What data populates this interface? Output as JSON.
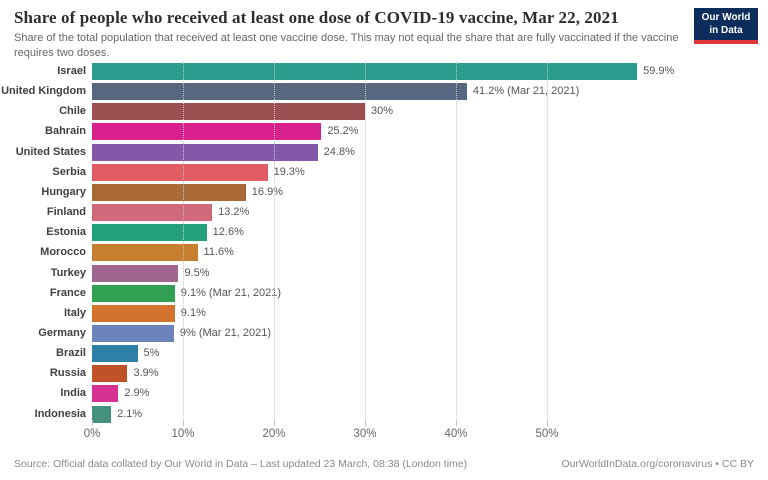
{
  "header": {
    "title": "Share of people who received at least one dose of COVID-19 vaccine, Mar 22, 2021",
    "subtitle": "Share of the total population that received at least one vaccine dose. This may not equal the share that are fully vaccinated if the vaccine requires two doses.",
    "logo": {
      "line1": "Our World",
      "line2": "in Data",
      "bg_color": "#0d2e5c",
      "accent_color": "#e0373b"
    }
  },
  "chart_data": {
    "type": "bar",
    "orientation": "horizontal",
    "title": "Share of people who received at least one dose of COVID-19 vaccine, Mar 22, 2021",
    "xlabel": "",
    "ylabel": "",
    "xlim": [
      0,
      61.5
    ],
    "grid": "dotted-vertical-on",
    "legend": "none",
    "x_ticks": [
      {
        "value": 0,
        "label": "0%"
      },
      {
        "value": 10,
        "label": "10%"
      },
      {
        "value": 20,
        "label": "20%"
      },
      {
        "value": 30,
        "label": "30%"
      },
      {
        "value": 40,
        "label": "40%"
      },
      {
        "value": 50,
        "label": "50%"
      }
    ],
    "categories": [
      "Israel",
      "United Kingdom",
      "Chile",
      "Bahrain",
      "United States",
      "Serbia",
      "Hungary",
      "Finland",
      "Estonia",
      "Morocco",
      "Turkey",
      "France",
      "Italy",
      "Germany",
      "Brazil",
      "Russia",
      "India",
      "Indonesia"
    ],
    "values": [
      59.9,
      41.2,
      30,
      25.2,
      24.8,
      19.3,
      16.9,
      13.2,
      12.6,
      11.6,
      9.5,
      9.1,
      9.1,
      9,
      5,
      3.9,
      2.9,
      2.1
    ],
    "value_labels": [
      "59.9%",
      "41.2% (Mar 21, 2021)",
      "30%",
      "25.2%",
      "24.8%",
      "19.3%",
      "16.9%",
      "13.2%",
      "12.6%",
      "11.6%",
      "9.5%",
      "9.1% (Mar 21, 2021)",
      "9.1%",
      "9% (Mar 21, 2021)",
      "5%",
      "3.9%",
      "2.9%",
      "2.1%"
    ],
    "colors": [
      "#2a9d8f",
      "#57677f",
      "#9c4f50",
      "#d9218e",
      "#8458a8",
      "#e25d63",
      "#a96a38",
      "#d06a7b",
      "#21a07a",
      "#c57f2f",
      "#a1668f",
      "#31a052",
      "#d3742e",
      "#6d84ba",
      "#2f80a8",
      "#c05227",
      "#d63194",
      "#46917e"
    ]
  },
  "footer": {
    "source": "Source: Official data collated by Our World in Data – Last updated 23 March, 08:38 (London time)",
    "link": "OurWorldInData.org/coronavirus",
    "license_suffix": " • CC BY"
  }
}
